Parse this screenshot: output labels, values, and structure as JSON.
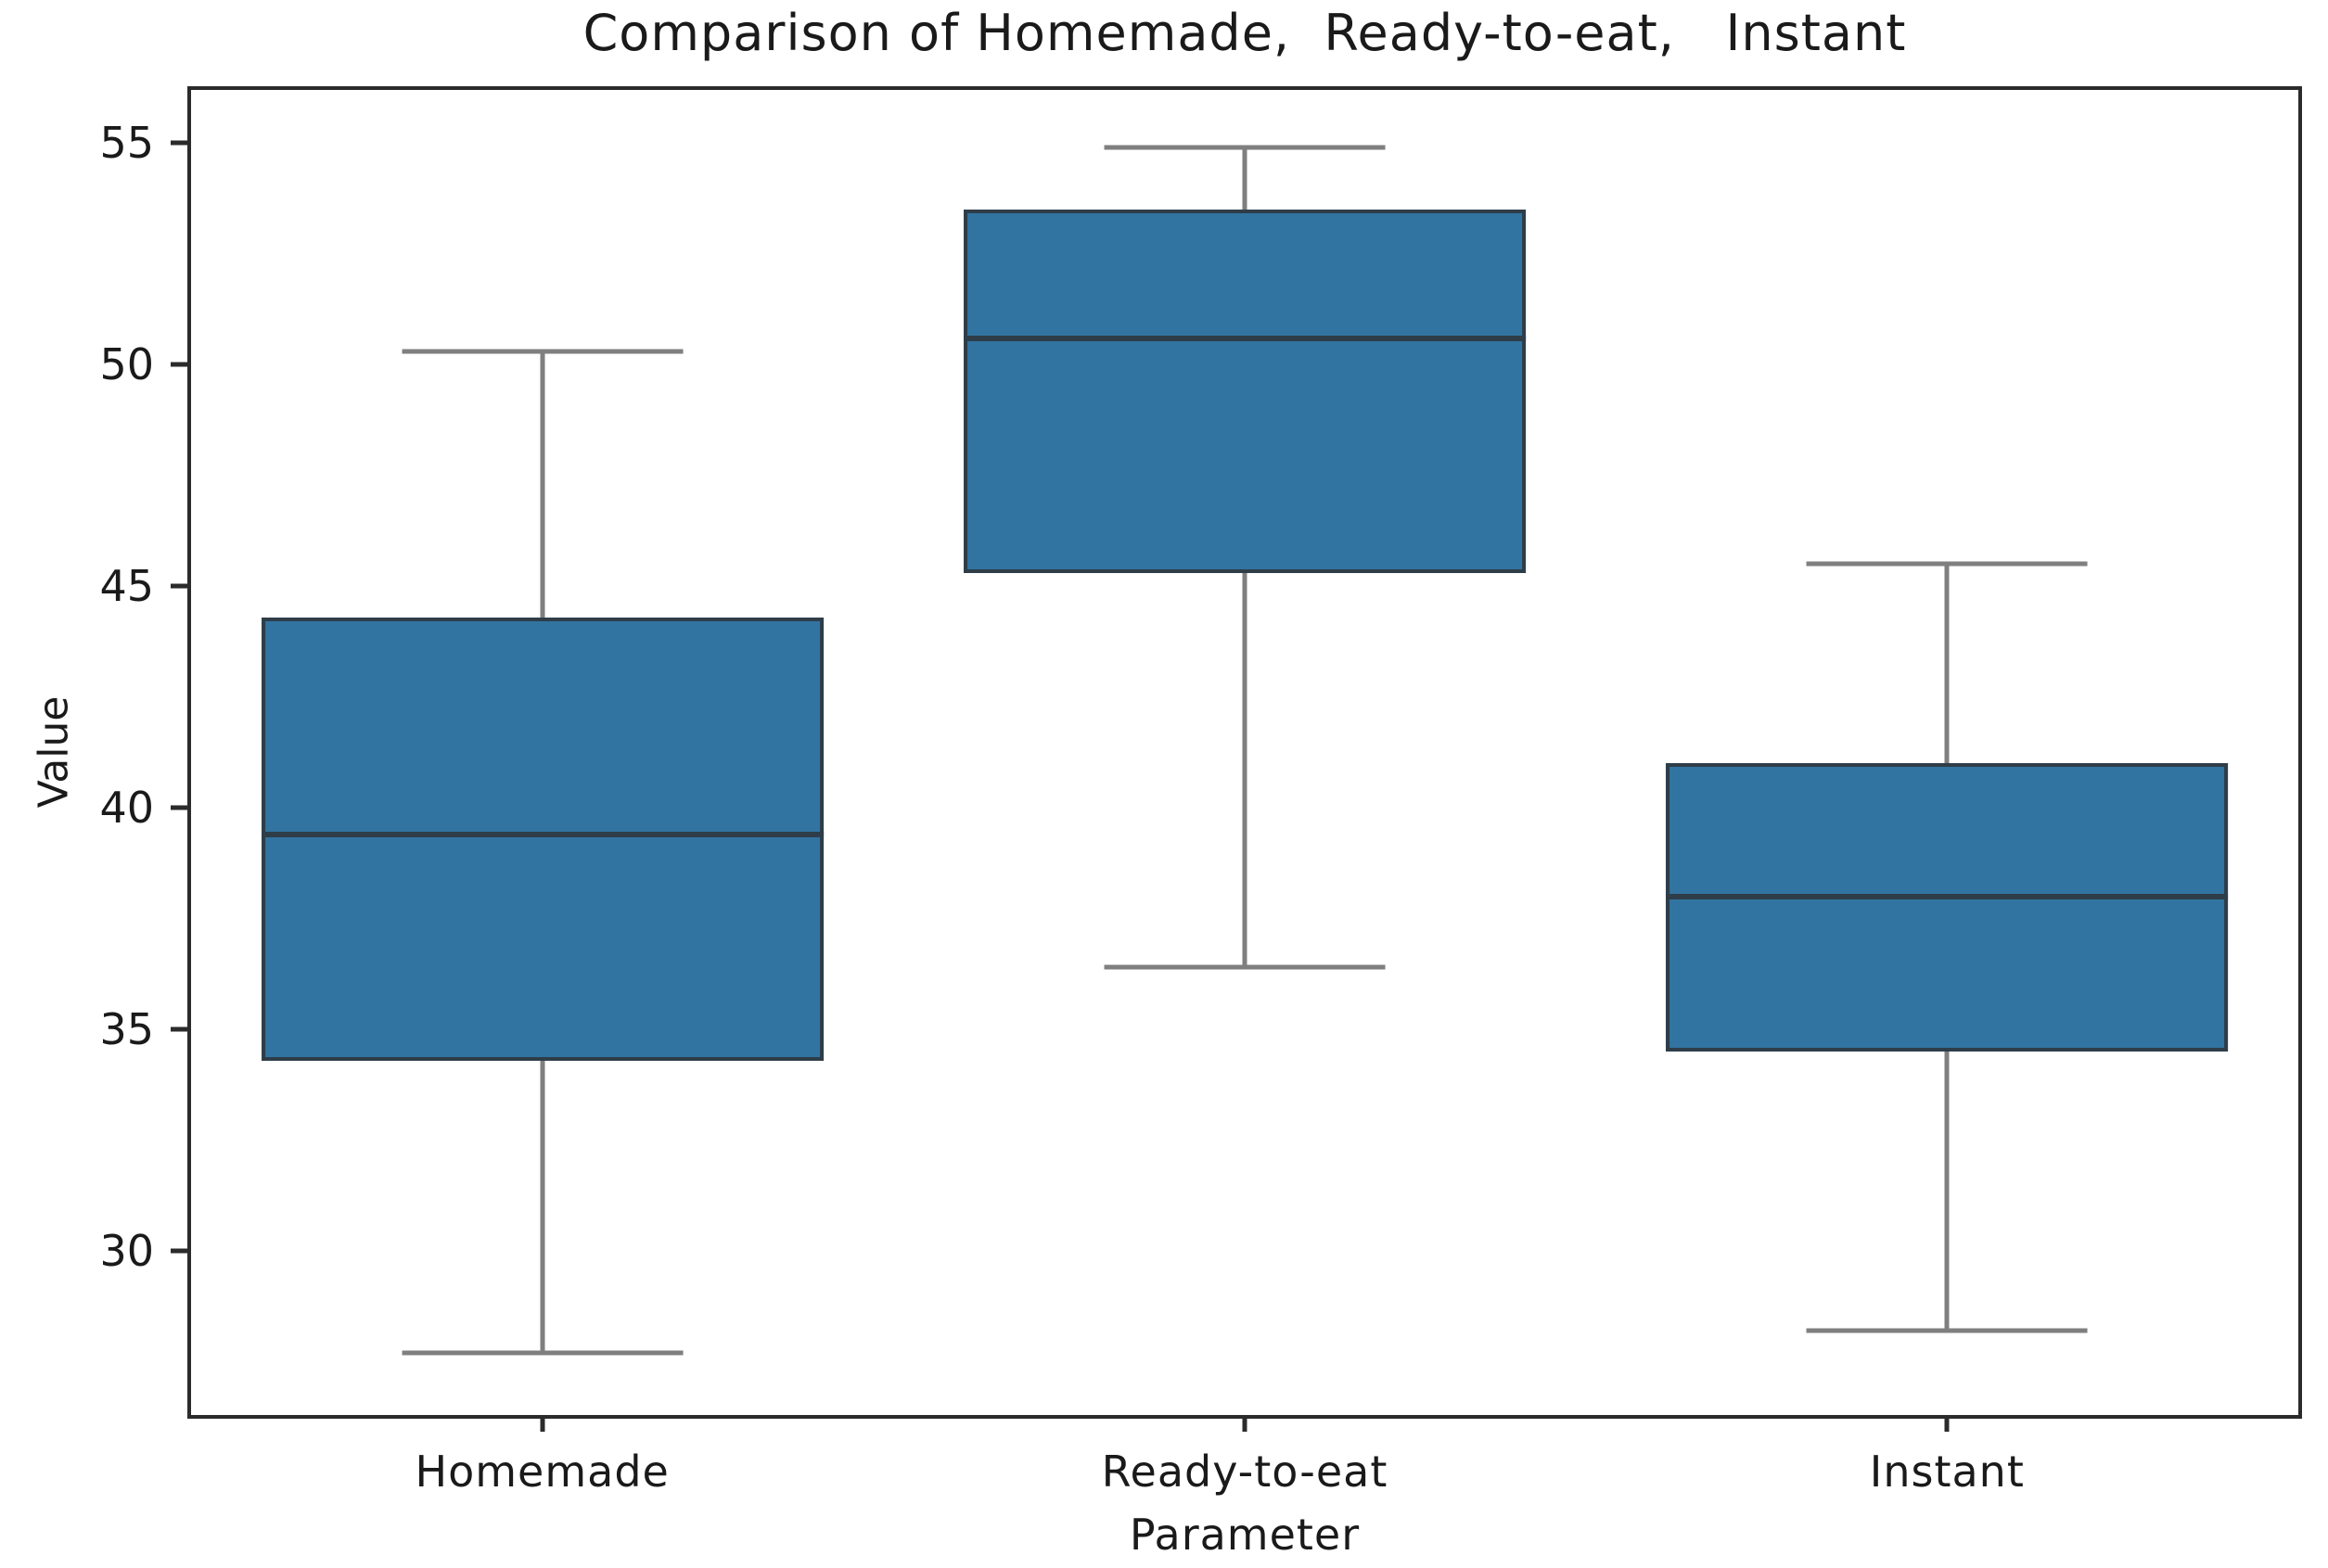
{
  "chart_data": {
    "type": "box",
    "title": "Comparison of Homemade,  Ready-to-eat,   Instant",
    "xlabel": "Parameter",
    "ylabel": "Value",
    "categories": [
      "Homemade",
      "Ready-to-eat",
      "Instant"
    ],
    "series": [
      {
        "name": "Homemade",
        "whisker_low": 27.7,
        "q1": 34.3,
        "median": 39.4,
        "q3": 44.3,
        "whisker_high": 50.3
      },
      {
        "name": "Ready-to-eat",
        "whisker_low": 36.4,
        "q1": 45.3,
        "median": 50.6,
        "q3": 53.5,
        "whisker_high": 54.9
      },
      {
        "name": "Instant",
        "whisker_low": 28.2,
        "q1": 34.5,
        "median": 38.0,
        "q3": 41.0,
        "whisker_high": 45.5
      }
    ],
    "ylim": [
      26.3,
      56.2
    ],
    "yticks": [
      30,
      35,
      40,
      45,
      50,
      55
    ],
    "grid": false,
    "legend": null,
    "layout": {
      "box_width_frac": 0.8,
      "cap_width_frac": 0.4
    },
    "colors": {
      "box_fill": "#3274a1",
      "box_edge": "#2e3d48",
      "median": "#2e3d48",
      "whisker": "#7f7f7f",
      "spine": "#2b2b2b",
      "text": "#1a1a1a",
      "background": "#ffffff"
    }
  }
}
